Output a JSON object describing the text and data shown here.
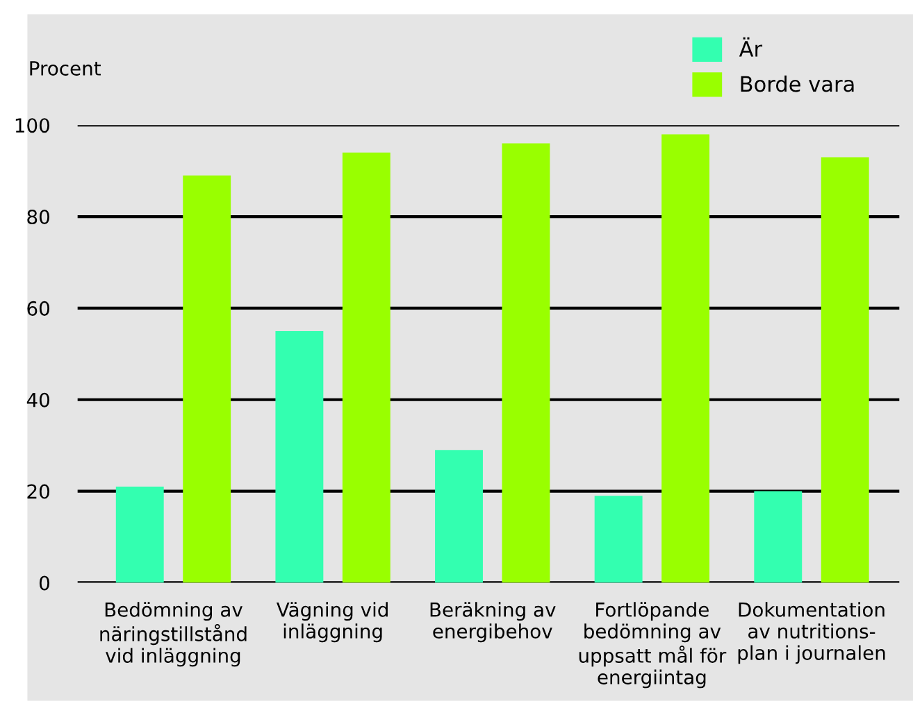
{
  "chart_data": {
    "type": "bar",
    "ylabel": "Procent",
    "categories": [
      "Bedömning av\nnäringstillstånd\nvid inläggning",
      "Vägning vid\ninläggning",
      "Beräkning av\nenergibehov",
      "Fortlöpande\nbedömning av\nuppsatt mål för\nenergiintag",
      "Dokumentation\nav nutritions-\nplan i journalen"
    ],
    "series": [
      {
        "name": "Är",
        "color": "#33ffb0",
        "values": [
          21,
          55,
          29,
          19,
          20
        ]
      },
      {
        "name": "Borde vara",
        "color": "#99ff00",
        "values": [
          89,
          94,
          96,
          98,
          93
        ]
      }
    ],
    "ylim": [
      0,
      100
    ],
    "yticks": [
      0,
      20,
      40,
      60,
      80,
      100
    ],
    "grid": "y",
    "legend": "top right"
  }
}
